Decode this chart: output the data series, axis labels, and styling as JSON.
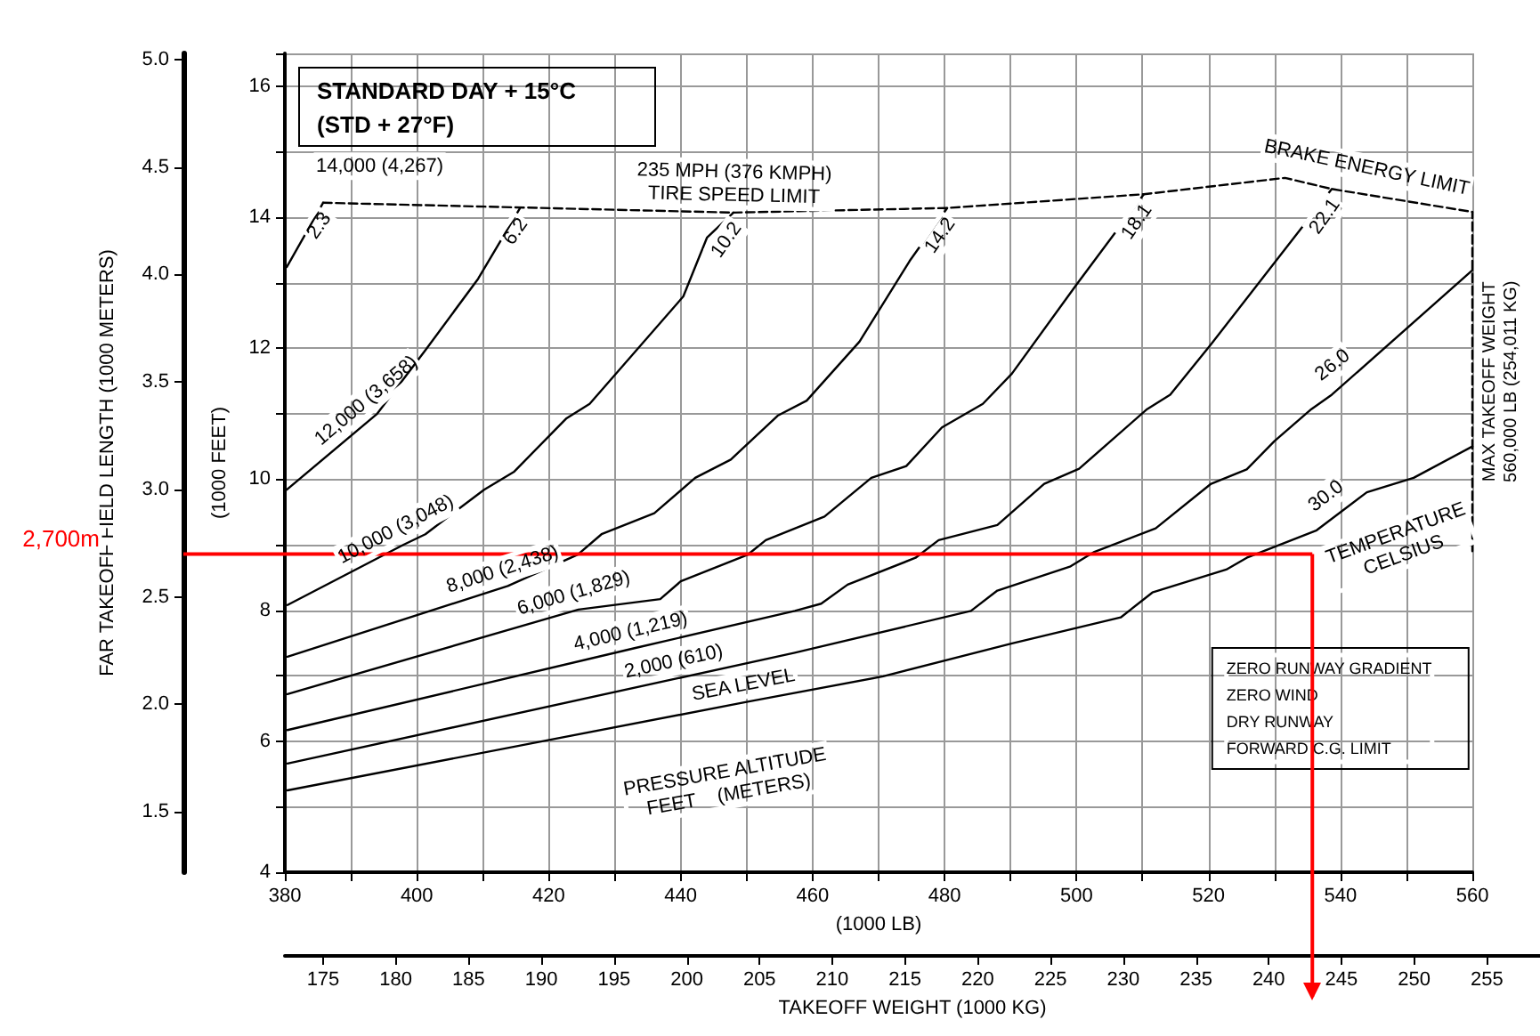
{
  "chart_data": {
    "type": "line",
    "title": "STANDARD DAY + 15°C",
    "subtitle": "(STD + 27°F)",
    "xlabel": "(1000 LB)",
    "ylabel": "(1000 FEET)",
    "y2label": "FAR TAKEOFF FIELD LENGTH (1000 METERS)",
    "x2label": "TAKEOFF WEIGHT (1000 KG)",
    "xlim": [
      380,
      560
    ],
    "xticks": [
      380,
      {
        "value": 390,
        "label": null
      },
      400,
      {
        "value": 410,
        "label": null
      },
      420,
      {
        "value": 430,
        "label": null
      },
      440,
      {
        "value": 450,
        "label": null
      },
      460,
      {
        "value": 470,
        "label": null
      },
      480,
      {
        "value": 490,
        "label": null
      },
      500,
      {
        "value": 510,
        "label": null
      },
      520,
      {
        "value": 530,
        "label": null
      },
      540,
      {
        "value": 550,
        "label": null
      },
      560
    ],
    "ylim": [
      4,
      16.5
    ],
    "yticks": [
      4,
      {
        "value": 5,
        "label": null
      },
      6,
      {
        "value": 7,
        "label": null
      },
      8,
      {
        "value": 9,
        "label": null
      },
      10,
      {
        "value": 11,
        "label": null
      },
      12,
      {
        "value": 13,
        "label": null
      },
      14,
      {
        "value": 15,
        "label": null
      },
      16
    ],
    "y2lim": [
      1.219,
      5.029
    ],
    "y2ticks": [
      {
        "value": 1.5,
        "label": "1.5"
      },
      {
        "value": 2,
        "label": "2.0"
      },
      {
        "value": 2.5,
        "label": "2.5"
      },
      {
        "value": 3,
        "label": "3.0"
      },
      {
        "value": 3.5,
        "label": "3.5"
      },
      {
        "value": 4,
        "label": "4.0"
      },
      {
        "value": 4.5,
        "label": "4.5"
      },
      {
        "value": 5,
        "label": "5.0"
      }
    ],
    "x2lim": [
      172.37,
      258.65
    ],
    "x2ticks": [
      175,
      180,
      185,
      190,
      195,
      200,
      205,
      210,
      215,
      220,
      225,
      230,
      235,
      240,
      245,
      250,
      255
    ],
    "grid": true,
    "legend": false,
    "marker": "none",
    "series": [
      {
        "name": "SEA LEVEL",
        "color": "#000000",
        "x": [
          380.4,
          450,
          470.7,
          490.1,
          506.7,
          511.5,
          522.7,
          525.8,
          536.4,
          544,
          551.1,
          560
        ],
        "values": [
          5.25,
          6.6,
          6.99,
          7.49,
          7.89,
          8.27,
          8.62,
          8.8,
          9.22,
          9.8,
          10.02,
          10.5
        ]
      },
      {
        "name": "2,000 (610)",
        "color": "#000000",
        "x": [
          380.4,
          439.5,
          457.3,
          484,
          488,
          499.1,
          502.7,
          512,
          520.4,
          525.8,
          530,
          535.6,
          538.7,
          560
        ],
        "values": [
          5.66,
          6.96,
          7.35,
          7.99,
          8.3,
          8.67,
          8.89,
          9.25,
          9.93,
          10.15,
          10.58,
          11.07,
          11.29,
          13.19
        ]
      },
      {
        "name": "4,000 (1,219)",
        "color": "#000000",
        "x": [
          380.4,
          433,
          457.3,
          461.3,
          465.3,
          475.6,
          479.1,
          488,
          495.1,
          500.4,
          510.7,
          514.2,
          520.4,
          538.7
        ],
        "values": [
          6.17,
          7.42,
          7.99,
          8.1,
          8.39,
          8.8,
          9.07,
          9.3,
          9.93,
          10.16,
          11.07,
          11.29,
          12.06,
          14.43
        ]
      },
      {
        "name": "6,000 (1,829)",
        "color": "#000000",
        "x": [
          380.4,
          424.5,
          436.9,
          440,
          450.2,
          452.9,
          461.8,
          468.9,
          474.2,
          479.6,
          485.8,
          490.2,
          500,
          510.2
        ],
        "values": [
          6.72,
          8.01,
          8.17,
          8.44,
          8.85,
          9.07,
          9.43,
          10.02,
          10.2,
          10.79,
          11.15,
          11.61,
          12.97,
          14.35
        ]
      },
      {
        "name": "8,000 (2,438)",
        "color": "#000000",
        "x": [
          380.4,
          413.8,
          424.4,
          428,
          436,
          442.2,
          447.6,
          454.7,
          459.1,
          467.1,
          474.7,
          480.4
        ],
        "values": [
          7.29,
          8.37,
          8.85,
          9.16,
          9.48,
          10.02,
          10.3,
          10.97,
          11.2,
          12.1,
          13.33,
          14.14
        ]
      },
      {
        "name": "10,000 (3,048)",
        "color": "#000000",
        "x": [
          380.4,
          398,
          401.3,
          410.2,
          414.7,
          422.7,
          426.2,
          440.4,
          444,
          448
        ],
        "values": [
          8.08,
          9.0,
          9.16,
          9.84,
          10.11,
          10.93,
          11.15,
          12.79,
          13.69,
          14.07
        ]
      },
      {
        "name": "12,000 (3,658)",
        "color": "#000000",
        "x": [
          380.3,
          394,
          401.3,
          409.3,
          415.6
        ],
        "values": [
          9.84,
          11.0,
          11.97,
          13.06,
          14.13
        ]
      },
      {
        "name": "14,000 (4,267)",
        "color": "#000000",
        "x": [
          380.3,
          385.8
        ],
        "values": [
          13.24,
          14.22
        ]
      },
      {
        "name": "235 MPH (376 KMPH)\nTIRE SPEED LIMIT",
        "color": "#000000",
        "line_style": "dashed",
        "x": [
          385.8,
          448,
          480.4,
          510.2,
          531.6,
          538.7,
          560
        ],
        "values": [
          14.22,
          14.07,
          14.14,
          14.35,
          14.6,
          14.43,
          14.08
        ]
      },
      {
        "name": "MAX TAKEOFF WEIGHT\n560,000 LB (254,011 KG)",
        "color": "#000000",
        "line_style": "dashed",
        "x": [
          560,
          560
        ],
        "values": [
          8.9,
          14.08
        ]
      }
    ],
    "annotations": [
      {
        "text": "2.3",
        "x": 385.8,
        "y": 14.22
      },
      {
        "text": "6.2",
        "x": 415.6,
        "y": 14.13
      },
      {
        "text": "10.2",
        "x": 448,
        "y": 14.07
      },
      {
        "text": "14.2",
        "x": 480.4,
        "y": 14.14
      },
      {
        "text": "18.1",
        "x": 510.2,
        "y": 14.35
      },
      {
        "text": "22.1",
        "x": 538.7,
        "y": 14.43
      },
      {
        "text": "26.0",
        "x": 541,
        "y": 11.49
      },
      {
        "text": "30.0",
        "x": 540,
        "y": 9.49
      },
      "TEMPERATURE\nCELSIUS",
      "PRESSURE ALTITUDE\nFEET    (METERS)",
      "ZERO RUNWAY GRADIENT\nZERO WIND\nDRY RUNWAY\nFORWARD C.G. LIMIT",
      "BRAKE ENERGY LIMIT"
    ],
    "ref_lines": [
      {
        "axis": "y2",
        "value": 2.7,
        "label": "2,700m",
        "color": "#ff0000"
      },
      {
        "axis": "x2",
        "value": 243,
        "color": "#ff0000"
      }
    ]
  }
}
